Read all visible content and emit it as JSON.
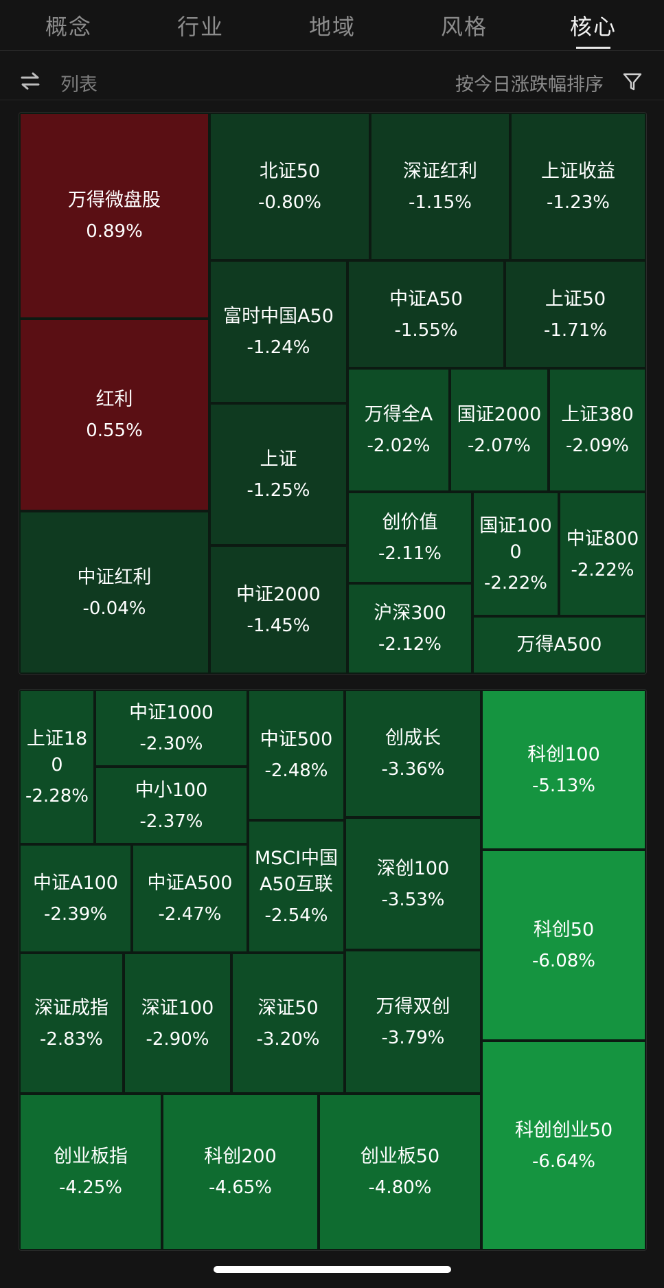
{
  "tabs": [
    {
      "label": "概念",
      "active": false
    },
    {
      "label": "行业",
      "active": false
    },
    {
      "label": "地域",
      "active": false
    },
    {
      "label": "风格",
      "active": false
    },
    {
      "label": "核心",
      "active": true
    }
  ],
  "toolbar": {
    "swap_icon": "swap-arrows-icon",
    "list_label": "列表",
    "sort_label": "按今日涨跌幅排序",
    "filter_icon": "funnel-filter-icon"
  },
  "colors": {
    "up": "#5a0f14",
    "down_light": "#0f3a20",
    "down_mid": "#0e4d26",
    "down_strong": "#0f6c30",
    "down_bright": "#159440",
    "background": "#141414"
  },
  "treemap_top": [
    {
      "name": "万得微盘股",
      "change": "0.89%"
    },
    {
      "name": "红利",
      "change": "0.55%"
    },
    {
      "name": "中证红利",
      "change": "-0.04%"
    },
    {
      "name": "北证50",
      "change": "-0.80%"
    },
    {
      "name": "深证红利",
      "change": "-1.15%"
    },
    {
      "name": "上证收益",
      "change": "-1.23%"
    },
    {
      "name": "富时中国A50",
      "change": "-1.24%"
    },
    {
      "name": "中证A50",
      "change": "-1.55%"
    },
    {
      "name": "上证50",
      "change": "-1.71%"
    },
    {
      "name": "上证",
      "change": "-1.25%"
    },
    {
      "name": "万得全A",
      "change": "-2.02%"
    },
    {
      "name": "国证2000",
      "change": "-2.07%"
    },
    {
      "name": "上证380",
      "change": "-2.09%"
    },
    {
      "name": "中证2000",
      "change": "-1.45%"
    },
    {
      "name": "创价值",
      "change": "-2.11%"
    },
    {
      "name": "国证1000",
      "change": "-2.22%"
    },
    {
      "name": "中证800",
      "change": "-2.22%"
    },
    {
      "name": "沪深300",
      "change": "-2.12%"
    },
    {
      "name": "万得A500",
      "change": ""
    }
  ],
  "treemap_bottom": [
    {
      "name": "上证180",
      "change": "-2.28%"
    },
    {
      "name": "中证1000",
      "change": "-2.30%"
    },
    {
      "name": "中小100",
      "change": "-2.37%"
    },
    {
      "name": "中证500",
      "change": "-2.48%"
    },
    {
      "name": "创成长",
      "change": "-3.36%"
    },
    {
      "name": "科创100",
      "change": "-5.13%"
    },
    {
      "name": "中证A100",
      "change": "-2.39%"
    },
    {
      "name": "中证A500",
      "change": "-2.47%"
    },
    {
      "name": "MSCI中国A50互联",
      "change": "-2.54%"
    },
    {
      "name": "深创100",
      "change": "-3.53%"
    },
    {
      "name": "科创50",
      "change": "-6.08%"
    },
    {
      "name": "深证成指",
      "change": "-2.83%"
    },
    {
      "name": "深证100",
      "change": "-2.90%"
    },
    {
      "name": "深证50",
      "change": "-3.20%"
    },
    {
      "name": "万得双创",
      "change": "-3.79%"
    },
    {
      "name": "科创创业50",
      "change": "-6.64%"
    },
    {
      "name": "创业板指",
      "change": "-4.25%"
    },
    {
      "name": "科创200",
      "change": "-4.65%"
    },
    {
      "name": "创业板50",
      "change": "-4.80%"
    }
  ]
}
